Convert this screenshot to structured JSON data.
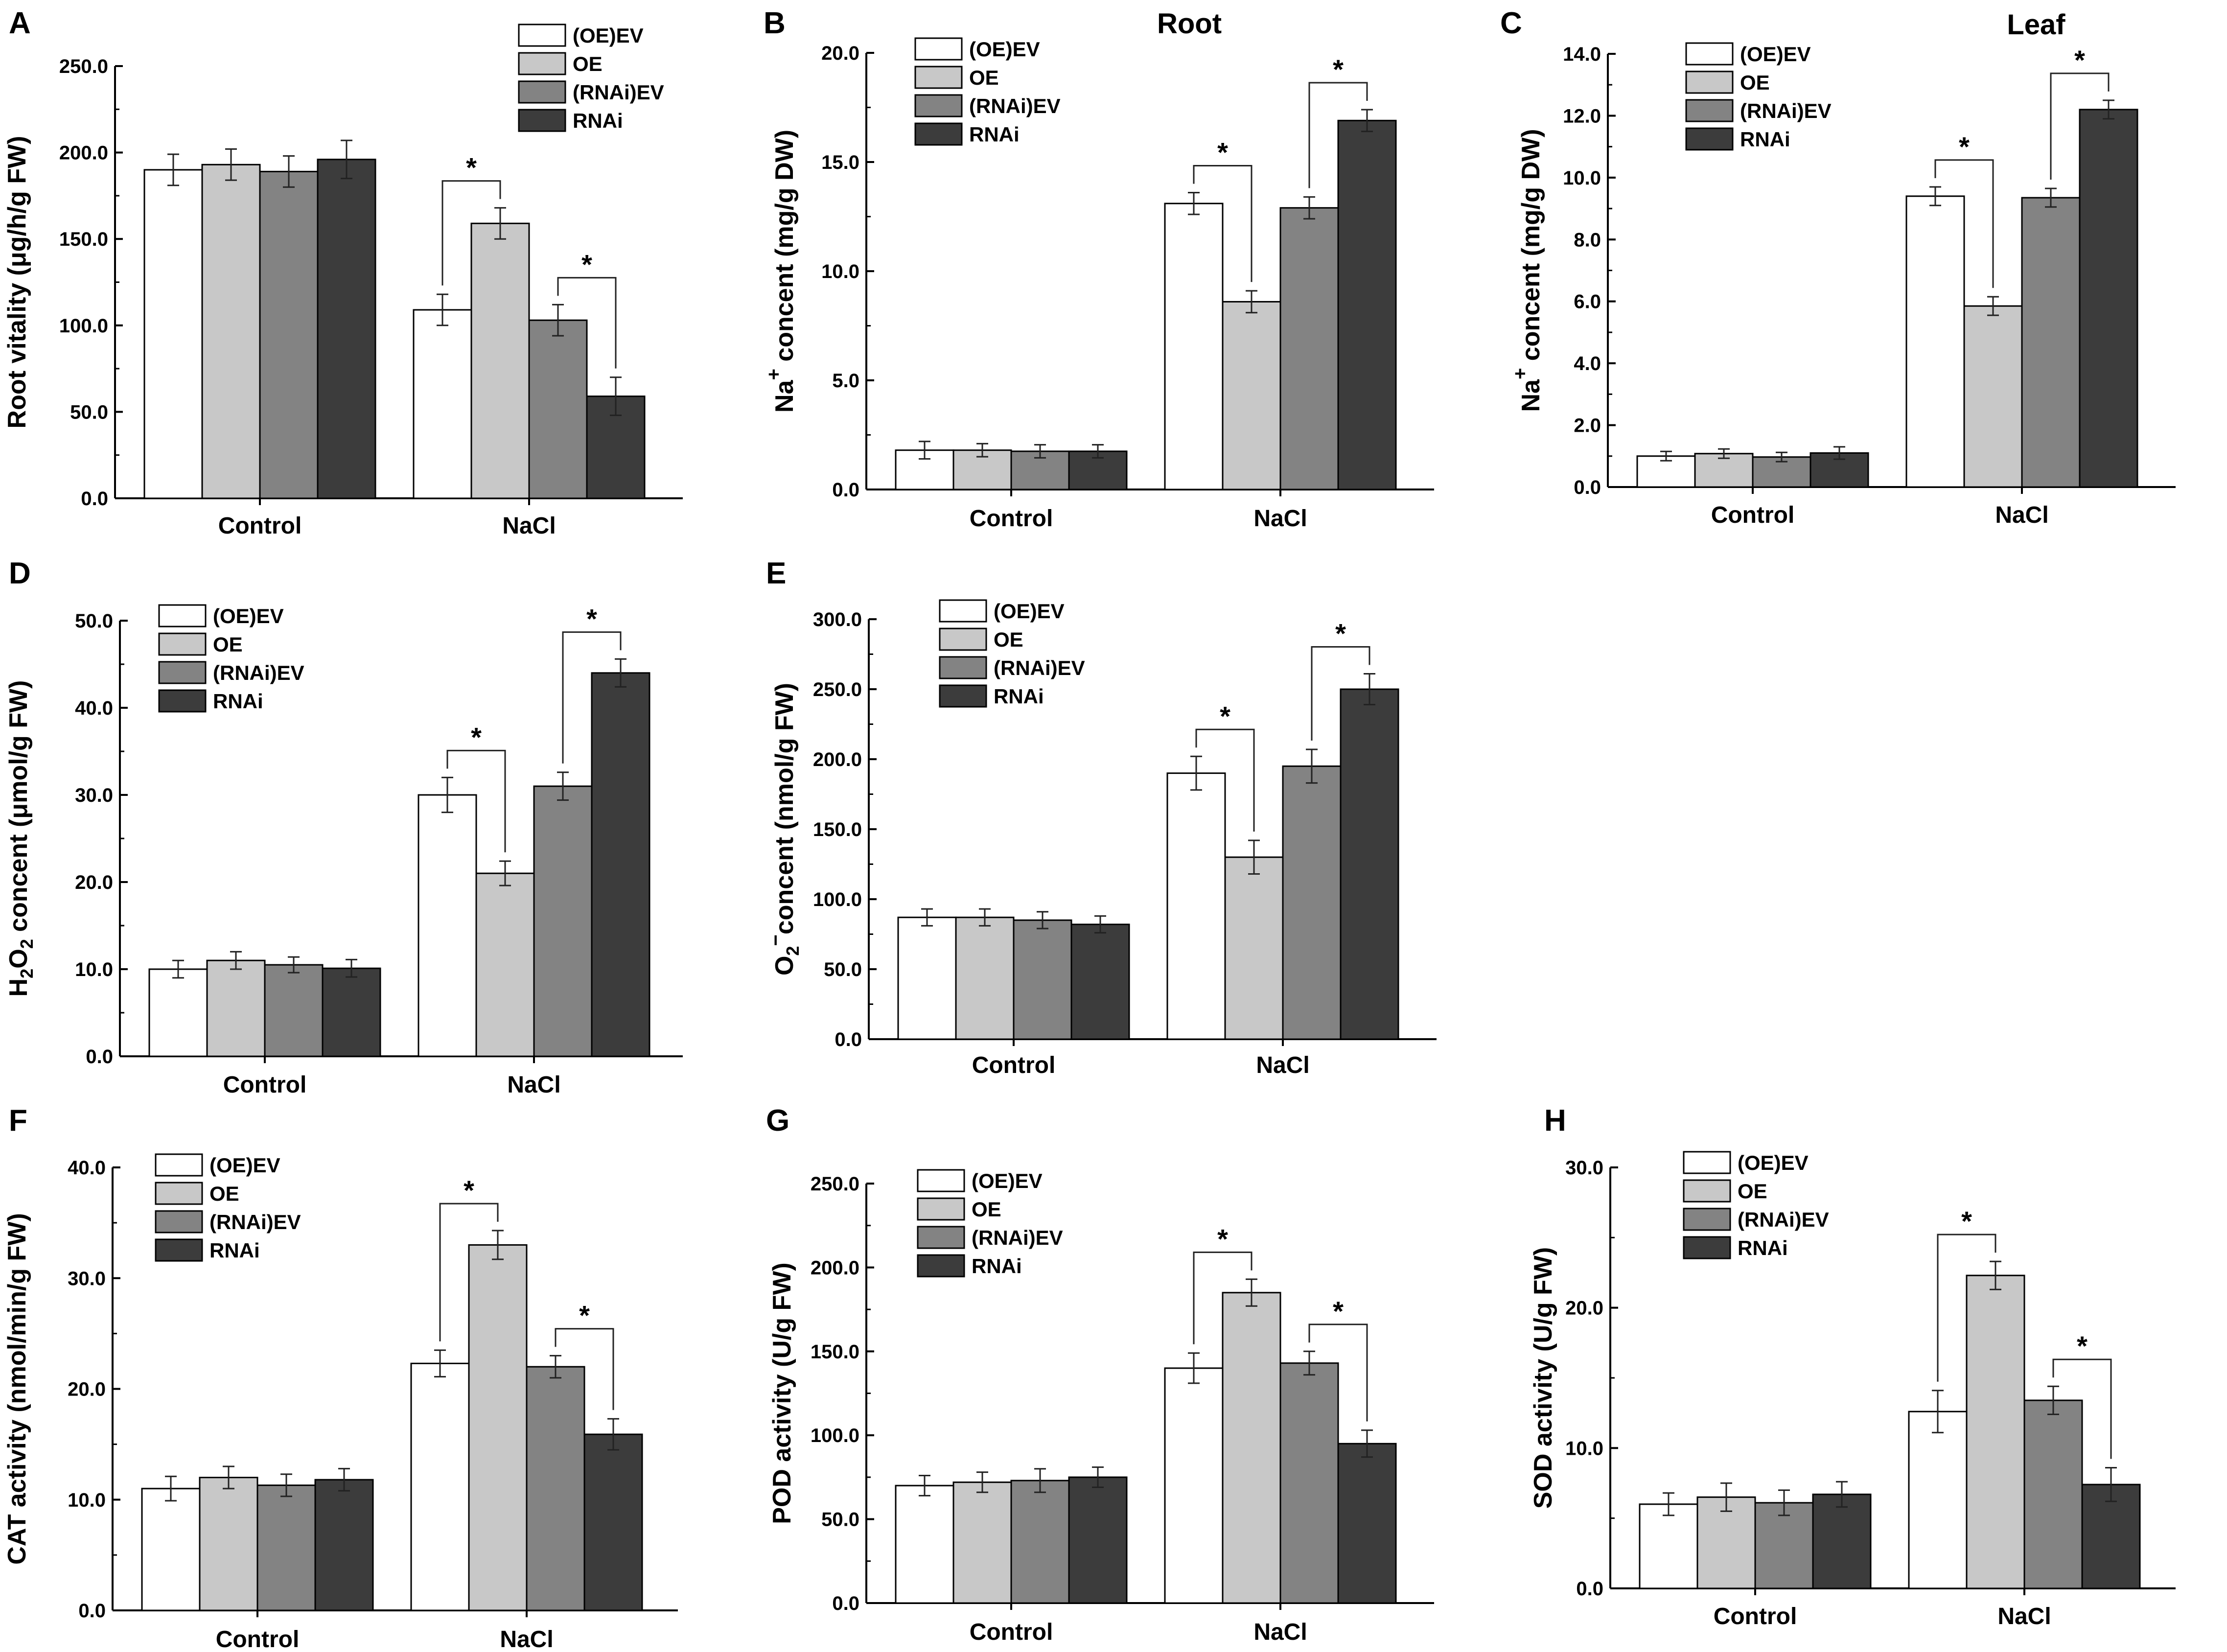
{
  "figure": {
    "legend_labels": [
      "(OE)EV",
      "OE",
      "(RNAi)EV",
      "RNAi"
    ],
    "series_colors": [
      "#ffffff",
      "#c8c8c8",
      "#838383",
      "#3c3c3c"
    ]
  },
  "chart_data": [
    {
      "panel": "A",
      "type": "bar",
      "title": "",
      "ylabel": "Root vitality (μg/h/g FW)",
      "ylim": [
        0,
        250
      ],
      "yticks": [
        "0.0",
        "50.0",
        "100.0",
        "150.0",
        "200.0",
        "250.0"
      ],
      "categories": [
        "Control",
        "NaCl"
      ],
      "series": [
        {
          "name": "(OE)EV",
          "values": [
            190,
            109
          ],
          "errors": [
            9,
            9
          ]
        },
        {
          "name": "OE",
          "values": [
            193,
            159
          ],
          "errors": [
            9,
            9
          ]
        },
        {
          "name": "(RNAi)EV",
          "values": [
            189,
            103
          ],
          "errors": [
            9,
            9
          ]
        },
        {
          "name": "RNAi",
          "values": [
            196,
            59
          ],
          "errors": [
            11,
            11
          ]
        }
      ],
      "significance": [
        {
          "category": 1,
          "from": 0,
          "to": 1,
          "label": "*"
        },
        {
          "category": 1,
          "from": 2,
          "to": 3,
          "label": "*"
        }
      ]
    },
    {
      "panel": "B",
      "type": "bar",
      "title": "Root",
      "ylabel_main": "Na",
      "ylabel_sup": "+",
      "ylabel_rest": " concent (mg/g DW)",
      "ylim": [
        0,
        20
      ],
      "yticks": [
        "0.0",
        "5.0",
        "10.0",
        "15.0",
        "20.0"
      ],
      "categories": [
        "Control",
        "NaCl"
      ],
      "series": [
        {
          "name": "(OE)EV",
          "values": [
            1.8,
            13.1
          ],
          "errors": [
            0.4,
            0.5
          ]
        },
        {
          "name": "OE",
          "values": [
            1.8,
            8.6
          ],
          "errors": [
            0.3,
            0.5
          ]
        },
        {
          "name": "(RNAi)EV",
          "values": [
            1.75,
            12.9
          ],
          "errors": [
            0.3,
            0.5
          ]
        },
        {
          "name": "RNAi",
          "values": [
            1.75,
            16.9
          ],
          "errors": [
            0.3,
            0.5
          ]
        }
      ],
      "significance": [
        {
          "category": 1,
          "from": 0,
          "to": 1,
          "label": "*"
        },
        {
          "category": 1,
          "from": 2,
          "to": 3,
          "label": "*"
        }
      ]
    },
    {
      "panel": "C",
      "type": "bar",
      "title": "Leaf",
      "ylabel_main": "Na",
      "ylabel_sup": "+",
      "ylabel_rest": " concent (mg/g DW)",
      "ylim": [
        0,
        14
      ],
      "yticks": [
        "0.0",
        "2.0",
        "4.0",
        "6.0",
        "8.0",
        "10.0",
        "12.0",
        "14.0"
      ],
      "categories": [
        "Control",
        "NaCl"
      ],
      "series": [
        {
          "name": "(OE)EV",
          "values": [
            1.0,
            9.4
          ],
          "errors": [
            0.15,
            0.3
          ]
        },
        {
          "name": "OE",
          "values": [
            1.08,
            5.85
          ],
          "errors": [
            0.15,
            0.3
          ]
        },
        {
          "name": "(RNAi)EV",
          "values": [
            0.97,
            9.35
          ],
          "errors": [
            0.15,
            0.3
          ]
        },
        {
          "name": "RNAi",
          "values": [
            1.1,
            12.2
          ],
          "errors": [
            0.2,
            0.3
          ]
        }
      ],
      "significance": [
        {
          "category": 1,
          "from": 0,
          "to": 1,
          "label": "*"
        },
        {
          "category": 1,
          "from": 2,
          "to": 3,
          "label": "*"
        }
      ]
    },
    {
      "panel": "D",
      "type": "bar",
      "title": "",
      "ylabel_main": "H",
      "ylabel_sub1": "2",
      "ylabel_mid": "O",
      "ylabel_sub2": "2",
      "ylabel_rest": " concent (μmol/g FW)",
      "ylim": [
        0,
        50
      ],
      "yticks": [
        "0.0",
        "10.0",
        "20.0",
        "30.0",
        "40.0",
        "50.0"
      ],
      "categories": [
        "Control",
        "NaCl"
      ],
      "series": [
        {
          "name": "(OE)EV",
          "values": [
            10.0,
            30.0
          ],
          "errors": [
            1.0,
            2.0
          ]
        },
        {
          "name": "OE",
          "values": [
            11.0,
            21.0
          ],
          "errors": [
            1.0,
            1.4
          ]
        },
        {
          "name": "(RNAi)EV",
          "values": [
            10.5,
            31.0
          ],
          "errors": [
            0.9,
            1.6
          ]
        },
        {
          "name": "RNAi",
          "values": [
            10.1,
            44.0
          ],
          "errors": [
            1.0,
            1.6
          ]
        }
      ],
      "significance": [
        {
          "category": 1,
          "from": 0,
          "to": 1,
          "label": "*"
        },
        {
          "category": 1,
          "from": 2,
          "to": 3,
          "label": "*"
        }
      ]
    },
    {
      "panel": "E",
      "type": "bar",
      "title": "",
      "ylabel_main": "O",
      "ylabel_sub": "2",
      "ylabel_sup": "−",
      "ylabel_rest": "concent (nmol/g FW)",
      "ylim": [
        0,
        300
      ],
      "yticks": [
        "0.0",
        "50.0",
        "100.0",
        "150.0",
        "200.0",
        "250.0",
        "300.0"
      ],
      "categories": [
        "Control",
        "NaCl"
      ],
      "series": [
        {
          "name": "(OE)EV",
          "values": [
            87,
            190
          ],
          "errors": [
            6,
            12
          ]
        },
        {
          "name": "OE",
          "values": [
            87,
            130
          ],
          "errors": [
            6,
            12
          ]
        },
        {
          "name": "(RNAi)EV",
          "values": [
            85,
            195
          ],
          "errors": [
            6,
            12
          ]
        },
        {
          "name": "RNAi",
          "values": [
            82,
            250
          ],
          "errors": [
            6,
            11
          ]
        }
      ],
      "significance": [
        {
          "category": 1,
          "from": 0,
          "to": 1,
          "label": "*"
        },
        {
          "category": 1,
          "from": 2,
          "to": 3,
          "label": "*"
        }
      ]
    },
    {
      "panel": "F",
      "type": "bar",
      "title": "",
      "ylabel": "CAT activity (nmol/min/g FW)",
      "ylim": [
        0,
        40
      ],
      "yticks": [
        "0.0",
        "10.0",
        "20.0",
        "30.0",
        "40.0"
      ],
      "categories": [
        "Control",
        "NaCl"
      ],
      "series": [
        {
          "name": "(OE)EV",
          "values": [
            11.0,
            22.3
          ],
          "errors": [
            1.1,
            1.2
          ]
        },
        {
          "name": "OE",
          "values": [
            12.0,
            33.0
          ],
          "errors": [
            1.0,
            1.3
          ]
        },
        {
          "name": "(RNAi)EV",
          "values": [
            11.3,
            22.0
          ],
          "errors": [
            1.0,
            1.0
          ]
        },
        {
          "name": "RNAi",
          "values": [
            11.8,
            15.9
          ],
          "errors": [
            1.0,
            1.4
          ]
        }
      ],
      "significance": [
        {
          "category": 1,
          "from": 0,
          "to": 1,
          "label": "*"
        },
        {
          "category": 1,
          "from": 2,
          "to": 3,
          "label": "*"
        }
      ]
    },
    {
      "panel": "G",
      "type": "bar",
      "title": "",
      "ylabel": "POD activity (U/g FW)",
      "ylim": [
        0,
        250
      ],
      "yticks": [
        "0.0",
        "50.0",
        "100.0",
        "150.0",
        "200.0",
        "250.0"
      ],
      "categories": [
        "Control",
        "NaCl"
      ],
      "series": [
        {
          "name": "(OE)EV",
          "values": [
            70,
            140
          ],
          "errors": [
            6,
            9
          ]
        },
        {
          "name": "OE",
          "values": [
            72,
            185
          ],
          "errors": [
            6,
            8
          ]
        },
        {
          "name": "(RNAi)EV",
          "values": [
            73,
            143
          ],
          "errors": [
            7,
            7
          ]
        },
        {
          "name": "RNAi",
          "values": [
            75,
            95
          ],
          "errors": [
            6,
            8
          ]
        }
      ],
      "significance": [
        {
          "category": 1,
          "from": 0,
          "to": 1,
          "label": "*"
        },
        {
          "category": 1,
          "from": 2,
          "to": 3,
          "label": "*"
        }
      ]
    },
    {
      "panel": "H",
      "type": "bar",
      "title": "",
      "ylabel": "SOD activity (U/g FW)",
      "ylim": [
        0,
        30
      ],
      "yticks": [
        "0.0",
        "10.0",
        "20.0",
        "30.0"
      ],
      "categories": [
        "Control",
        "NaCl"
      ],
      "series": [
        {
          "name": "(OE)EV",
          "values": [
            6.0,
            12.6
          ],
          "errors": [
            0.8,
            1.5
          ]
        },
        {
          "name": "OE",
          "values": [
            6.5,
            22.3
          ],
          "errors": [
            1.0,
            1.0
          ]
        },
        {
          "name": "(RNAi)EV",
          "values": [
            6.1,
            13.4
          ],
          "errors": [
            0.9,
            1.0
          ]
        },
        {
          "name": "RNAi",
          "values": [
            6.7,
            7.4
          ],
          "errors": [
            0.9,
            1.2
          ]
        }
      ],
      "significance": [
        {
          "category": 1,
          "from": 0,
          "to": 1,
          "label": "*"
        },
        {
          "category": 1,
          "from": 2,
          "to": 3,
          "label": "*"
        }
      ]
    }
  ]
}
